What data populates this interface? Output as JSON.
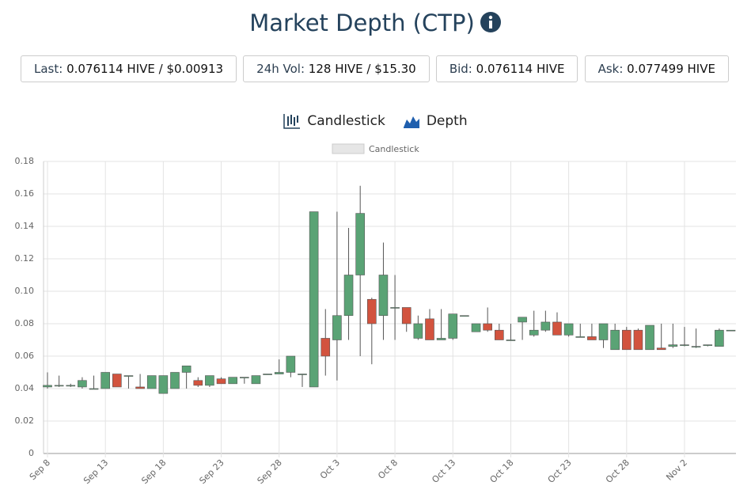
{
  "header": {
    "title": "Market Depth (CTP)"
  },
  "stats": [
    {
      "label": "Last:",
      "value": "0.076114 HIVE / $0.00913"
    },
    {
      "label": "24h Vol:",
      "value": "128 HIVE / $15.30"
    },
    {
      "label": "Bid:",
      "value": "0.076114 HIVE"
    },
    {
      "label": "Ask:",
      "value": "0.077499 HIVE"
    }
  ],
  "tabs": [
    "Candlestick",
    "Depth"
  ],
  "chart_data": {
    "type": "candlestick",
    "series_name": "Candlestick",
    "up_color": "#5aa375",
    "down_color": "#d2533e",
    "categories": [
      "Sep 8",
      null,
      null,
      null,
      null,
      "Sep 13",
      null,
      null,
      null,
      null,
      "Sep 18",
      null,
      null,
      null,
      null,
      "Sep 23",
      null,
      null,
      null,
      null,
      "Sep 28",
      null,
      null,
      null,
      null,
      "Oct 3",
      null,
      null,
      null,
      null,
      "Oct 8",
      null,
      null,
      null,
      null,
      "Oct 13",
      null,
      null,
      null,
      null,
      "Oct 18",
      null,
      null,
      null,
      null,
      "Oct 23",
      null,
      null,
      null,
      null,
      "Oct 28",
      null,
      null,
      null,
      null,
      "Nov 2",
      null,
      null,
      null,
      null
    ],
    "open": [
      0.041,
      0.042,
      0.042,
      0.041,
      0.04,
      0.04,
      0.049,
      0.048,
      0.041,
      0.04,
      0.037,
      0.04,
      0.05,
      0.045,
      0.042,
      0.046,
      0.043,
      0.047,
      0.043,
      0.049,
      0.049,
      0.05,
      0.049,
      0.041,
      0.071,
      0.07,
      0.085,
      0.11,
      0.095,
      0.085,
      0.09,
      0.09,
      0.071,
      0.083,
      0.07,
      0.071,
      0.085,
      0.075,
      0.08,
      0.076,
      0.07,
      0.081,
      0.073,
      0.076,
      0.081,
      0.073,
      0.072,
      0.072,
      0.07,
      0.064,
      0.076,
      0.076,
      0.064,
      0.065,
      0.066,
      0.067,
      0.066,
      0.067,
      0.066,
      0.076
    ],
    "high": [
      0.05,
      0.048,
      0.043,
      0.047,
      0.048,
      0.05,
      0.049,
      0.048,
      0.049,
      0.048,
      0.048,
      0.05,
      0.054,
      0.047,
      0.048,
      0.047,
      0.047,
      0.047,
      0.048,
      0.049,
      0.058,
      0.06,
      0.049,
      0.149,
      0.089,
      0.149,
      0.139,
      0.165,
      0.096,
      0.13,
      0.11,
      0.09,
      0.085,
      0.089,
      0.089,
      0.086,
      0.085,
      0.08,
      0.09,
      0.08,
      0.08,
      0.084,
      0.088,
      0.088,
      0.087,
      0.08,
      0.08,
      0.08,
      0.08,
      0.08,
      0.078,
      0.077,
      0.079,
      0.08,
      0.08,
      0.078,
      0.077,
      0.067,
      0.077,
      0.076
    ],
    "low": [
      0.04,
      0.041,
      0.041,
      0.04,
      0.04,
      0.04,
      0.041,
      0.04,
      0.04,
      0.04,
      0.037,
      0.04,
      0.04,
      0.041,
      0.041,
      0.043,
      0.043,
      0.043,
      0.043,
      0.049,
      0.049,
      0.047,
      0.041,
      0.041,
      0.048,
      0.045,
      0.07,
      0.06,
      0.055,
      0.07,
      0.07,
      0.075,
      0.07,
      0.07,
      0.07,
      0.07,
      0.085,
      0.075,
      0.075,
      0.07,
      0.07,
      0.07,
      0.072,
      0.075,
      0.073,
      0.072,
      0.072,
      0.07,
      0.065,
      0.064,
      0.064,
      0.064,
      0.064,
      0.064,
      0.065,
      0.066,
      0.065,
      0.066,
      0.066,
      0.076
    ],
    "close": [
      0.042,
      0.042,
      0.042,
      0.045,
      0.04,
      0.05,
      0.041,
      0.048,
      0.04,
      0.048,
      0.048,
      0.05,
      0.054,
      0.042,
      0.048,
      0.043,
      0.047,
      0.047,
      0.048,
      0.049,
      0.05,
      0.06,
      0.049,
      0.149,
      0.06,
      0.085,
      0.11,
      0.148,
      0.08,
      0.11,
      0.09,
      0.08,
      0.08,
      0.07,
      0.071,
      0.086,
      0.085,
      0.08,
      0.076,
      0.07,
      0.07,
      0.084,
      0.076,
      0.081,
      0.073,
      0.08,
      0.072,
      0.07,
      0.08,
      0.076,
      0.064,
      0.064,
      0.079,
      0.064,
      0.067,
      0.067,
      0.066,
      0.067,
      0.076,
      0.076
    ],
    "ylim": [
      0,
      0.18
    ],
    "yticks": [
      0,
      0.02,
      0.04,
      0.06,
      0.08,
      {
        "value": 0.1,
        "label": "0.10"
      },
      0.12,
      0.14,
      0.16,
      0.18
    ],
    "grid": true
  }
}
